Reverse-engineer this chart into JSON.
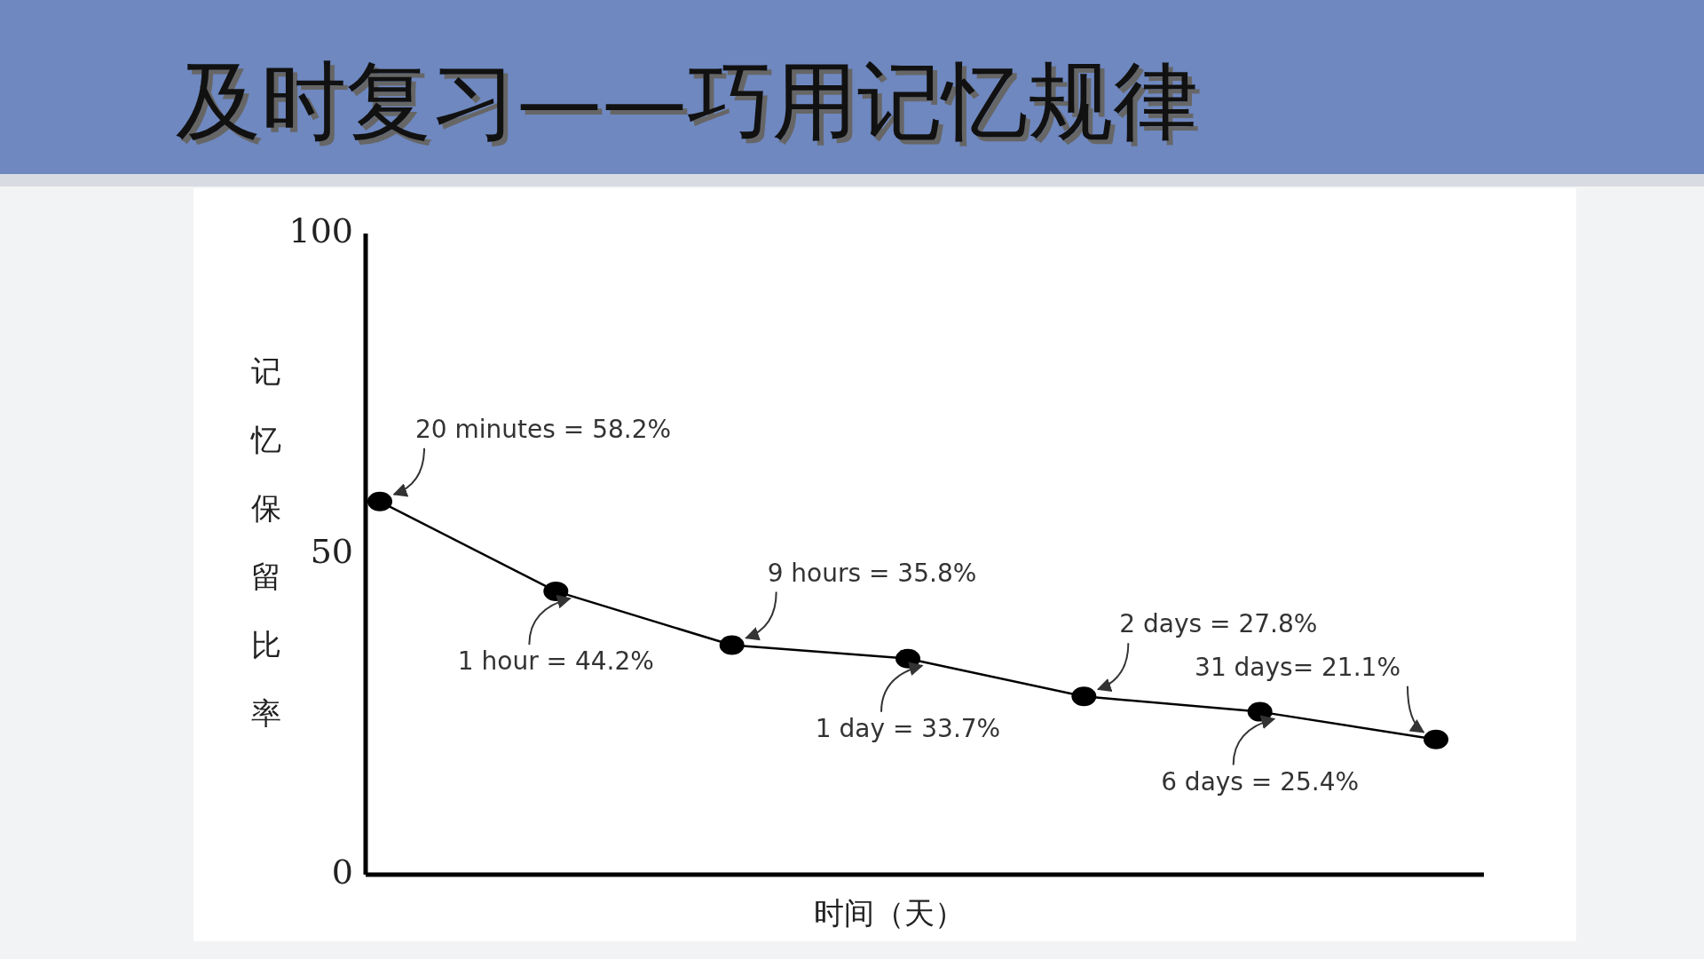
{
  "chart_data": {
    "type": "line",
    "title": "及时复习——巧用记忆规律",
    "xlabel": "时间（天）",
    "ylabel": "记忆保留比率",
    "categories": [
      null,
      null,
      null,
      null,
      null,
      null,
      null
    ],
    "series": [
      {
        "color": "#000000",
        "values": [
          58.2,
          44.2,
          35.8,
          33.7,
          27.8,
          25.4,
          21.1
        ],
        "value_labels": [
          "20 minutes = 58.2%",
          "1 hour = 44.2%",
          "9 hours = 35.8%",
          "1 day = 33.7%",
          "2 days = 27.8%",
          "6 days = 25.4%",
          "31 days= 21.1%"
        ]
      }
    ],
    "ylim": [
      0,
      100
    ],
    "yticks": [
      0,
      50,
      100
    ],
    "marker": "circle",
    "line_style": "solid",
    "grid": false
  }
}
